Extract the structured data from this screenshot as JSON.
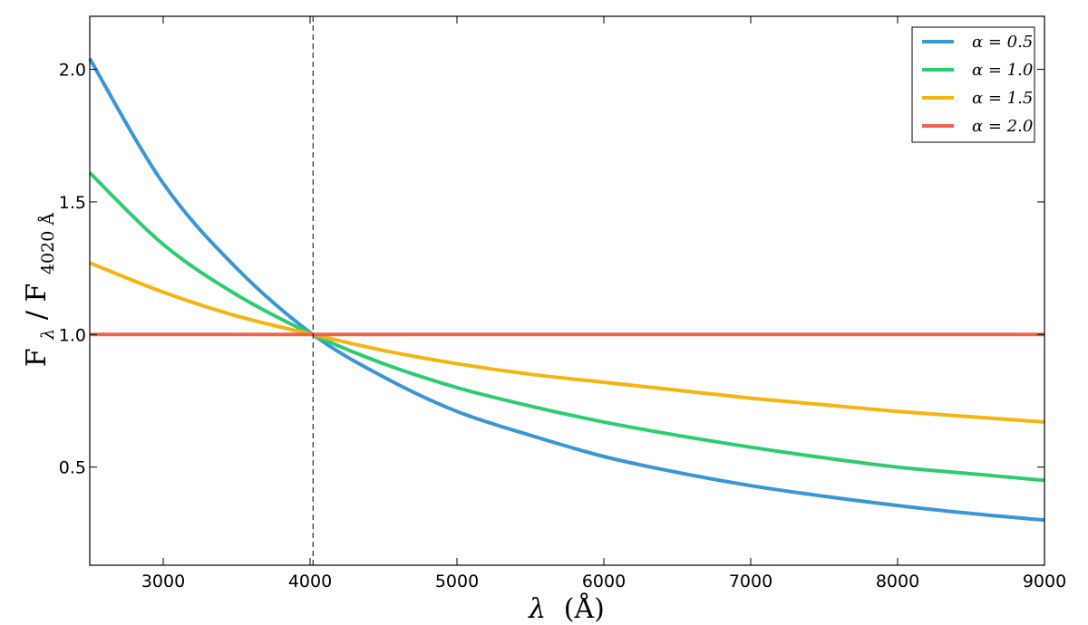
{
  "chart_data": {
    "type": "line",
    "x_label": {
      "symbol": "λ",
      "unit": "(Å)"
    },
    "y_label": {
      "base": "F",
      "sub1": "λ",
      "sep": " / ",
      "sub2": "4020 Å"
    },
    "xlim": [
      2500,
      9000
    ],
    "ylim": [
      0.13,
      2.2
    ],
    "x_ticks": [
      3000,
      4000,
      5000,
      6000,
      7000,
      8000,
      9000
    ],
    "y_ticks": [
      0.5,
      1.0,
      1.5,
      2.0
    ],
    "x_tick_labels": [
      "3000",
      "4000",
      "5000",
      "6000",
      "7000",
      "8000",
      "9000"
    ],
    "y_tick_labels": [
      "0.5",
      "1.0",
      "1.5",
      "2.0"
    ],
    "reference_line_x": 4020,
    "reference_line_style": "dashed",
    "grid": false,
    "legend_position": "top-right",
    "series": [
      {
        "name": "α = 0.5",
        "color": "#3a96d4",
        "points": [
          [
            2500,
            2.04
          ],
          [
            3000,
            1.57
          ],
          [
            3500,
            1.25
          ],
          [
            4020,
            1.0
          ],
          [
            4500,
            0.84
          ],
          [
            5000,
            0.71
          ],
          [
            5500,
            0.62
          ],
          [
            6000,
            0.54
          ],
          [
            6500,
            0.48
          ],
          [
            7000,
            0.43
          ],
          [
            7500,
            0.39
          ],
          [
            8000,
            0.355
          ],
          [
            8500,
            0.325
          ],
          [
            9000,
            0.3
          ]
        ]
      },
      {
        "name": "α = 1.0",
        "color": "#2ecc71",
        "points": [
          [
            2500,
            1.61
          ],
          [
            3000,
            1.34
          ],
          [
            3500,
            1.15
          ],
          [
            4020,
            1.0
          ],
          [
            4500,
            0.89
          ],
          [
            5000,
            0.8
          ],
          [
            5500,
            0.73
          ],
          [
            6000,
            0.67
          ],
          [
            6500,
            0.62
          ],
          [
            7000,
            0.575
          ],
          [
            7500,
            0.535
          ],
          [
            8000,
            0.5
          ],
          [
            8500,
            0.475
          ],
          [
            9000,
            0.45
          ]
        ]
      },
      {
        "name": "α = 1.5",
        "color": "#f5b40f",
        "points": [
          [
            2500,
            1.27
          ],
          [
            3000,
            1.16
          ],
          [
            3500,
            1.07
          ],
          [
            4020,
            1.0
          ],
          [
            4500,
            0.94
          ],
          [
            5000,
            0.89
          ],
          [
            5500,
            0.85
          ],
          [
            6000,
            0.82
          ],
          [
            6500,
            0.79
          ],
          [
            7000,
            0.76
          ],
          [
            7500,
            0.735
          ],
          [
            8000,
            0.71
          ],
          [
            8500,
            0.69
          ],
          [
            9000,
            0.67
          ]
        ]
      },
      {
        "name": "α = 2.0",
        "color": "#f0624d",
        "points": [
          [
            2500,
            1.0
          ],
          [
            4020,
            1.0
          ],
          [
            9000,
            1.0
          ]
        ]
      }
    ]
  }
}
